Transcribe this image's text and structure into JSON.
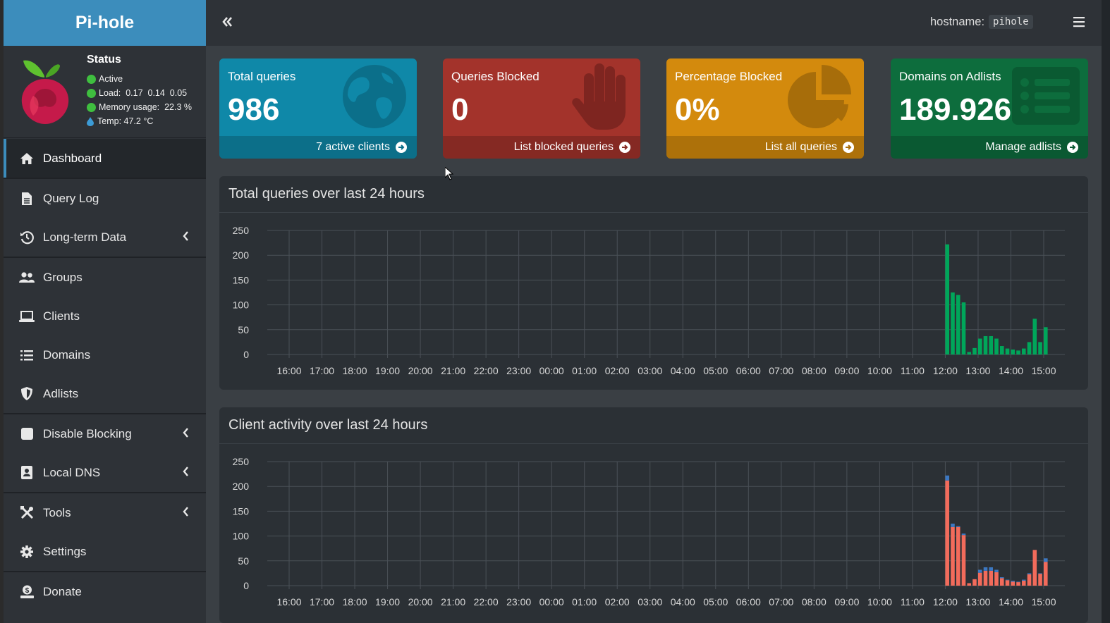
{
  "app": {
    "logo_text": "Pi-hole"
  },
  "status": {
    "title": "Status",
    "active": "Active",
    "load": "Load:  0.17  0.14  0.05",
    "memory": "Memory usage:  22.3 %",
    "temp": "Temp: 47.2 °C"
  },
  "nav": [
    {
      "label": "Dashboard",
      "icon": "home-icon",
      "active": true
    },
    {
      "label": "Query Log",
      "icon": "file-icon"
    },
    {
      "label": "Long-term Data",
      "icon": "history-icon",
      "expandable": true
    },
    {
      "label": "Groups",
      "icon": "users-icon"
    },
    {
      "label": "Clients",
      "icon": "laptop-icon"
    },
    {
      "label": "Domains",
      "icon": "list-icon"
    },
    {
      "label": "Adlists",
      "icon": "shield-icon"
    },
    {
      "label": "Disable Blocking",
      "icon": "stop-icon",
      "expandable": true
    },
    {
      "label": "Local DNS",
      "icon": "address-book-icon",
      "expandable": true
    },
    {
      "label": "Tools",
      "icon": "tools-icon",
      "expandable": true
    },
    {
      "label": "Settings",
      "icon": "gear-icon"
    },
    {
      "label": "Donate",
      "icon": "donate-icon"
    }
  ],
  "topbar": {
    "hostname_label": "hostname:",
    "hostname_value": "pihole"
  },
  "boxes": [
    {
      "title": "Total queries",
      "value": "986",
      "footer": "7 active clients",
      "color": "#0f88a8",
      "icon": "globe-icon"
    },
    {
      "title": "Queries Blocked",
      "value": "0",
      "footer": "List blocked queries",
      "color": "#a3332b",
      "icon": "hand-icon"
    },
    {
      "title": "Percentage Blocked",
      "value": "0%",
      "footer": "List all queries",
      "color": "#d38a0d",
      "icon": "pie-chart-icon"
    },
    {
      "title": "Domains on Adlists",
      "value": "189.926",
      "footer": "Manage adlists",
      "color": "#0d6d3d",
      "icon": "list-alt-icon"
    }
  ],
  "chart_data": [
    {
      "type": "bar",
      "title": "Total queries over last 24 hours",
      "ylim": [
        0,
        250
      ],
      "yticks": [
        "250",
        "200",
        "150",
        "100",
        "50",
        "0"
      ],
      "xticks": [
        "16:00",
        "17:00",
        "18:00",
        "19:00",
        "20:00",
        "21:00",
        "22:00",
        "23:00",
        "00:00",
        "01:00",
        "02:00",
        "03:00",
        "04:00",
        "05:00",
        "06:00",
        "07:00",
        "08:00",
        "09:00",
        "10:00",
        "11:00",
        "12:00",
        "13:00",
        "14:00",
        "15:00"
      ],
      "bars_start_hour": 12,
      "bar_interval_minutes": 10,
      "series": [
        {
          "color": "#00a65a",
          "values": [
            222,
            125,
            120,
            105,
            5,
            13,
            32,
            37,
            37,
            32,
            17,
            12,
            10,
            8,
            12,
            25,
            72,
            25,
            55
          ]
        }
      ]
    },
    {
      "type": "bar",
      "stacked": true,
      "title": "Client activity over last 24 hours",
      "ylim": [
        0,
        250
      ],
      "yticks": [
        "250",
        "200",
        "150",
        "100",
        "50",
        "0"
      ],
      "xticks": [
        "16:00",
        "17:00",
        "18:00",
        "19:00",
        "20:00",
        "21:00",
        "22:00",
        "23:00",
        "00:00",
        "01:00",
        "02:00",
        "03:00",
        "04:00",
        "05:00",
        "06:00",
        "07:00",
        "08:00",
        "09:00",
        "10:00",
        "11:00",
        "12:00",
        "13:00",
        "14:00",
        "15:00"
      ],
      "bars_start_hour": 12,
      "bar_interval_minutes": 10,
      "series": [
        {
          "color": "#f26b5b",
          "values": [
            212,
            118,
            118,
            102,
            5,
            13,
            26,
            30,
            30,
            27,
            15,
            11,
            8,
            7,
            10,
            23,
            72,
            24,
            48
          ]
        },
        {
          "color": "#3c78c2",
          "values": [
            10,
            7,
            2,
            3,
            0,
            0,
            6,
            7,
            7,
            5,
            2,
            1,
            2,
            1,
            2,
            2,
            0,
            1,
            7
          ]
        }
      ]
    }
  ]
}
